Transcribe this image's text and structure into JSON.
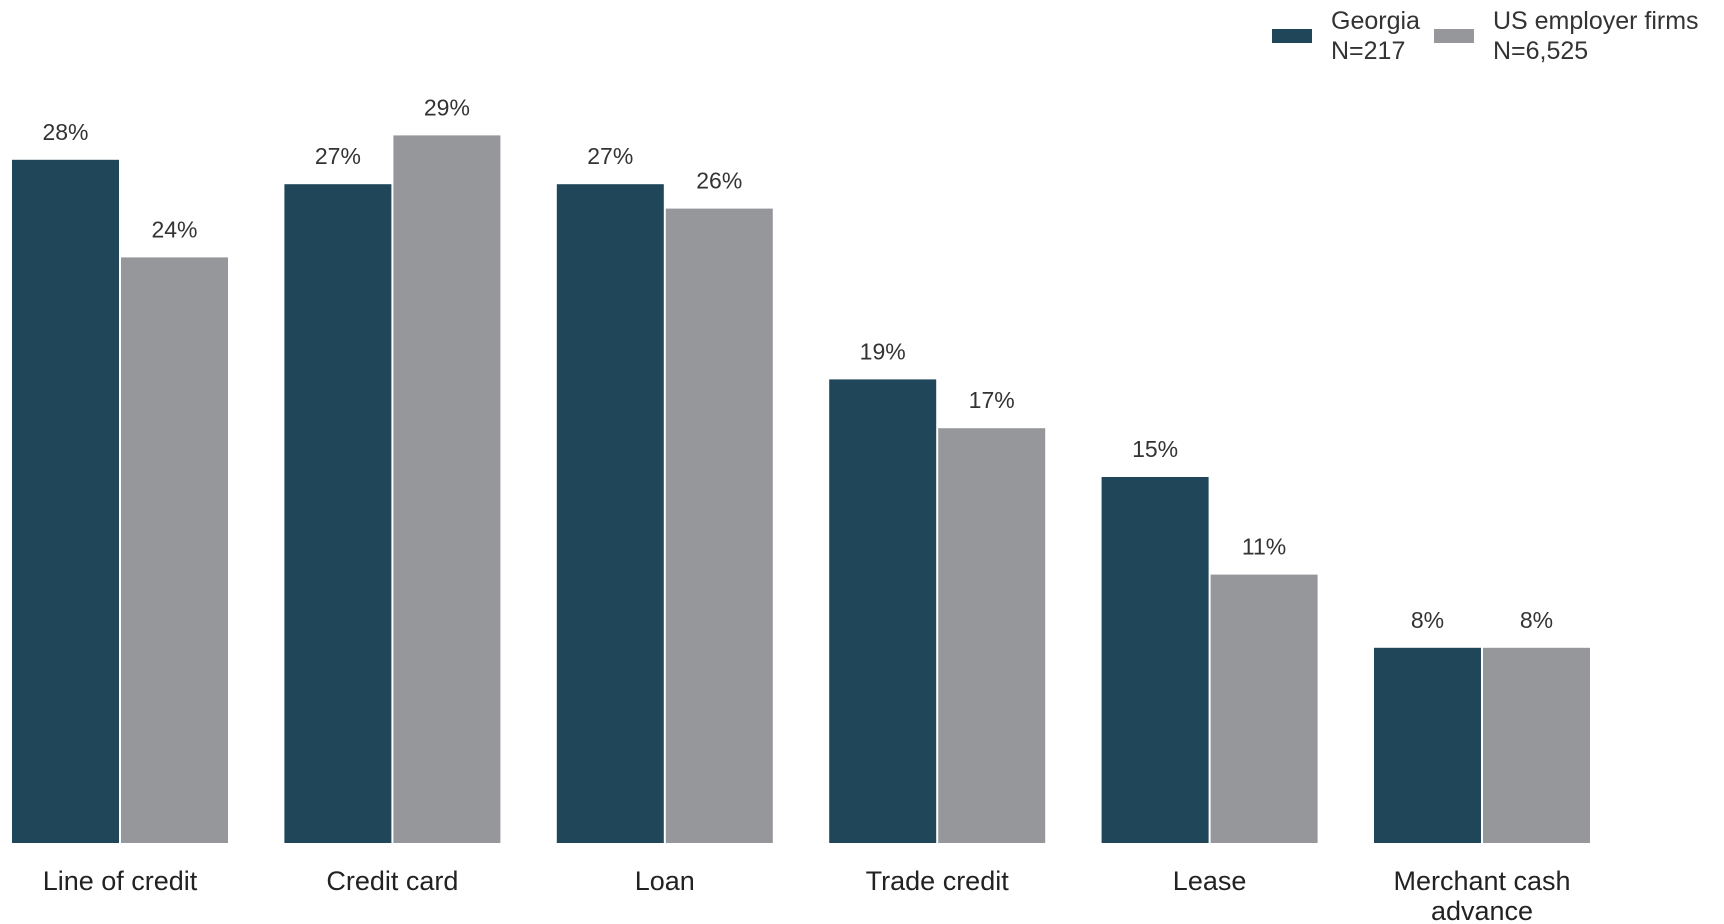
{
  "chart_data": {
    "type": "bar",
    "title": "",
    "xlabel": "",
    "ylabel": "",
    "ylim": [
      0,
      30
    ],
    "grid": false,
    "legend_position": "top-right",
    "categories": [
      "Line of credit",
      "Credit card",
      "Loan",
      "Trade credit",
      "Lease",
      "Merchant cash advance"
    ],
    "series": [
      {
        "name": "Georgia",
        "sublabel": "N=217",
        "color": "#1f4659",
        "values": [
          28,
          27,
          27,
          19,
          15,
          8
        ]
      },
      {
        "name": "US employer firms",
        "sublabel": "N=6,525",
        "color": "#96979a",
        "values": [
          24,
          29,
          26,
          17,
          11,
          8
        ]
      }
    ],
    "value_suffix": "%"
  }
}
